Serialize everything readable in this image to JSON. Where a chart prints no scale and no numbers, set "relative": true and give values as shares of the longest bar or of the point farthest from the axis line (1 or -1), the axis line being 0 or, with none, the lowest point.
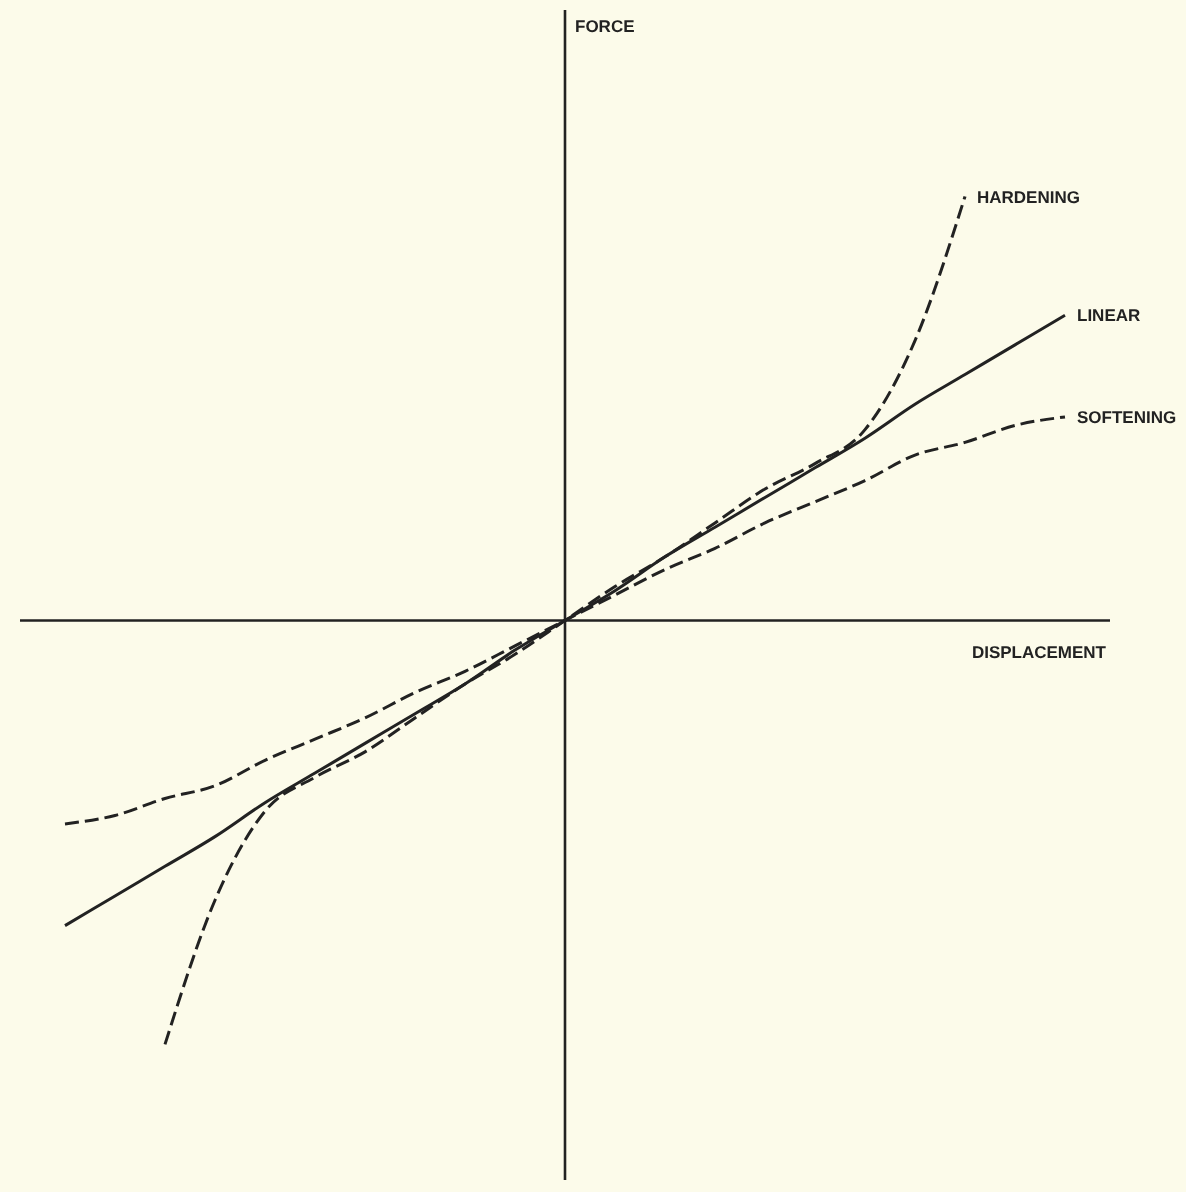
{
  "chart_data": {
    "type": "line",
    "relative": true,
    "xlabel": "DISPLACEMENT",
    "annotations": [
      "FORCE"
    ],
    "categories": [
      null,
      null,
      null,
      null,
      null,
      null,
      null,
      null,
      null,
      null,
      null,
      null,
      null,
      null,
      null,
      null,
      null,
      null,
      null,
      null,
      null
    ],
    "series": [
      {
        "name": "HARDENING",
        "color": "#222222",
        "line_style": "dashed",
        "values": [
          null,
          null,
          -1.0,
          -0.66,
          -0.45,
          -0.37,
          -0.31,
          -0.23,
          -0.15,
          -0.08,
          0,
          0.08,
          0.15,
          0.23,
          0.31,
          0.37,
          0.45,
          0.66,
          1.0,
          null,
          null
        ]
      },
      {
        "name": "LINEAR",
        "color": "#222222",
        "line_style": "solid",
        "values": [
          -0.72,
          -0.65,
          -0.58,
          -0.51,
          -0.43,
          -0.36,
          -0.29,
          -0.22,
          -0.15,
          -0.07,
          0,
          0.07,
          0.15,
          0.22,
          0.29,
          0.36,
          0.43,
          0.51,
          0.58,
          0.65,
          0.72
        ]
      },
      {
        "name": "SOFTENING",
        "color": "#222222",
        "line_style": "dashed",
        "values": [
          -0.48,
          -0.46,
          -0.42,
          -0.39,
          -0.33,
          -0.28,
          -0.23,
          -0.17,
          -0.12,
          -0.06,
          0,
          0.06,
          0.12,
          0.17,
          0.23,
          0.28,
          0.33,
          0.39,
          0.42,
          0.46,
          0.48
        ]
      }
    ]
  }
}
